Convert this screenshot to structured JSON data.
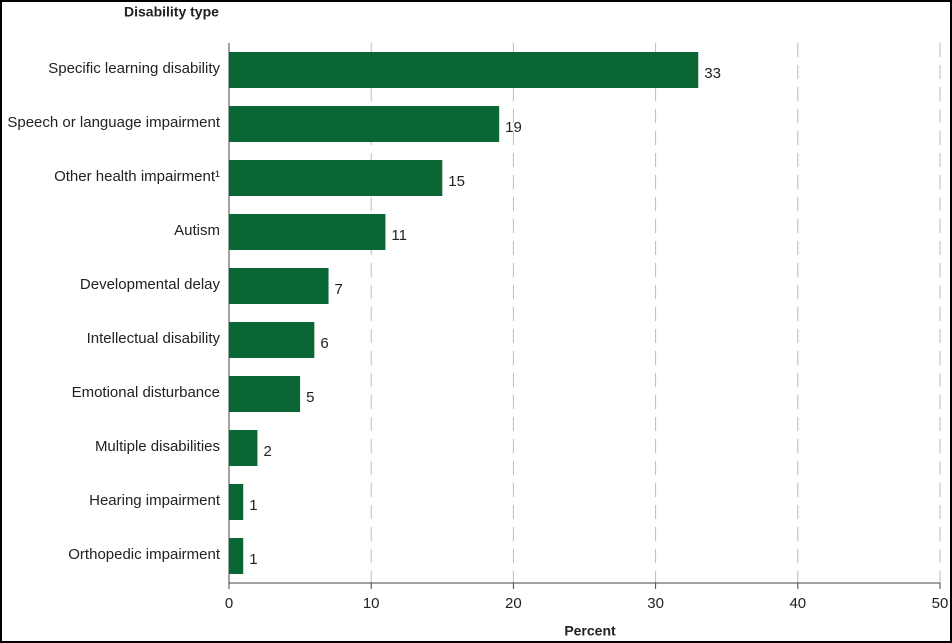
{
  "chart_data": {
    "type": "bar",
    "orientation": "horizontal",
    "title": "Disability type",
    "x_label": "Percent",
    "categories": [
      "Specific learning disability",
      "Speech or language impairment",
      "Other health impairment¹",
      "Autism",
      "Developmental delay",
      "Intellectual disability",
      "Emotional disturbance",
      "Multiple disabilities",
      "Hearing impairment",
      "Orthopedic impairment"
    ],
    "values": [
      33,
      19,
      15,
      11,
      7,
      6,
      5,
      2,
      1,
      1
    ],
    "color": "#0b6636",
    "xlim": [
      0,
      50
    ],
    "xticks": [
      0,
      10,
      20,
      30,
      40,
      50
    ],
    "grid": true
  }
}
